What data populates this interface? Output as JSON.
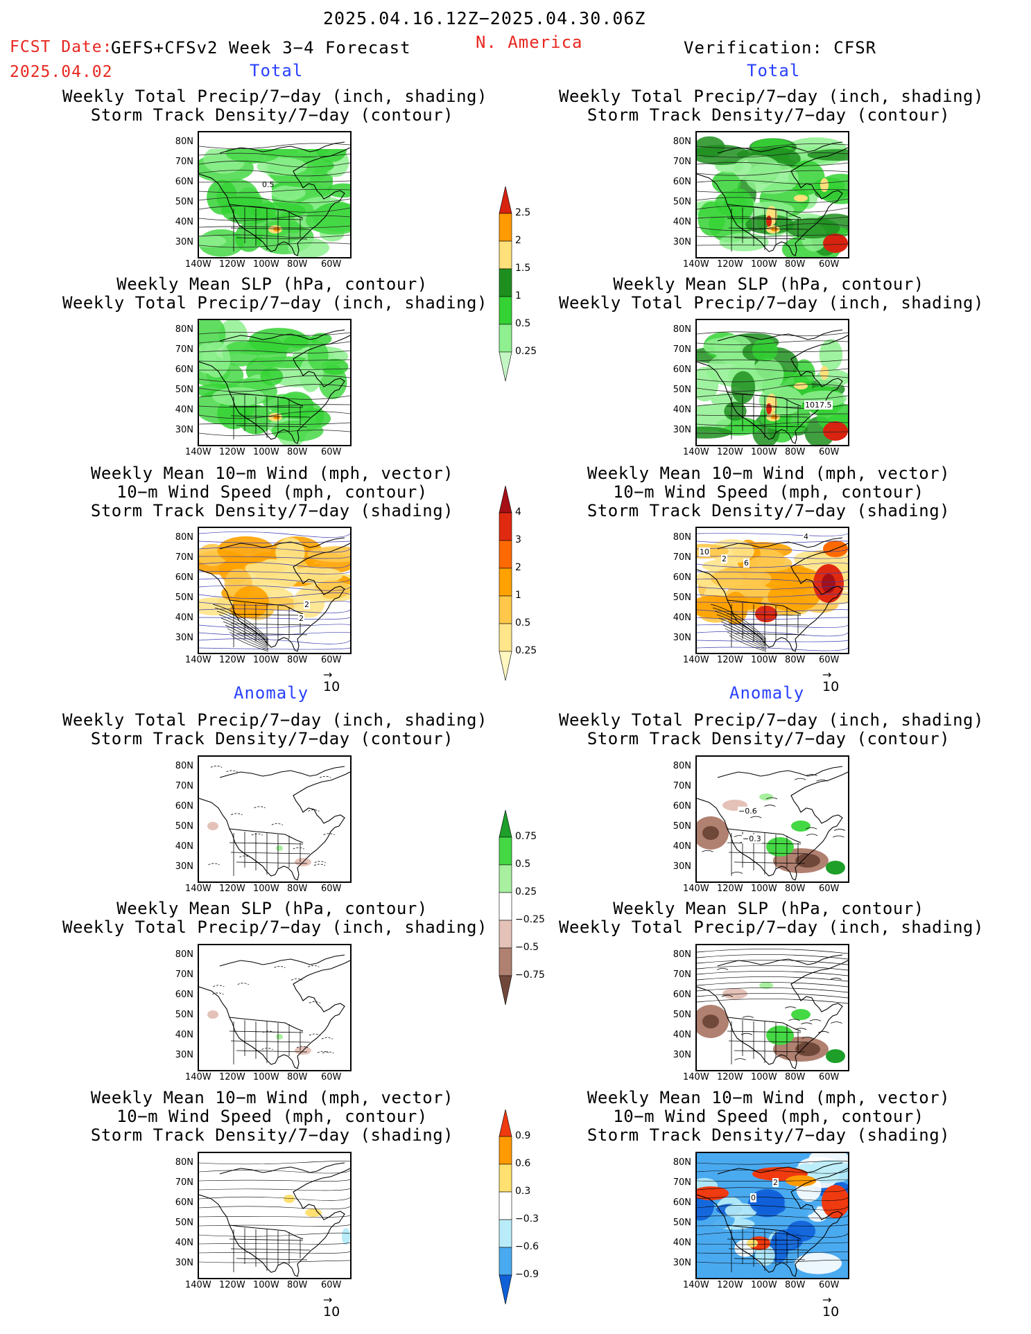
{
  "header": {
    "date_range": "2025.04.16.12Z−2025.04.30.06Z",
    "fcst_label": "FCST Date:",
    "model_title": "GEFS+CFSv2 Week 3−4 Forecast",
    "region": "N. America",
    "fcst_date": "2025.04.02",
    "verification": "Verification: CFSR"
  },
  "section_labels": {
    "total": "Total",
    "anomaly": "Anomaly"
  },
  "titles": {
    "precip_storm": [
      "Weekly Total Precip/7−day (inch, shading)",
      "Storm Track Density/7−day (contour)"
    ],
    "slp_precip": [
      "Weekly Mean SLP (hPa, contour)",
      "Weekly Total Precip/7−day (inch, shading)"
    ],
    "wind_storm": [
      "Weekly Mean 10−m Wind (mph, vector)",
      "10−m Wind Speed (mph, contour)",
      "Storm Track Density/7−day (shading)"
    ]
  },
  "axes": {
    "lat_labels": [
      "80N",
      "70N",
      "60N",
      "50N",
      "40N",
      "30N"
    ],
    "lon_labels": [
      "140W",
      "120W",
      "100W",
      "80W",
      "60W"
    ]
  },
  "vector_ref": "10",
  "colorbars": {
    "precip_total": {
      "labels": [
        "2.5",
        "2",
        "1.5",
        "1",
        "0.5",
        "0.25"
      ],
      "colors": [
        "#d7230f",
        "#ff9a00",
        "#ffe07a",
        "#1e8f1e",
        "#34d234",
        "#8ef08e",
        "#c4f6c4"
      ]
    },
    "storm_total": {
      "labels": [
        "4",
        "3",
        "2",
        "1",
        "0.5",
        "0.25"
      ],
      "colors": [
        "#a50f15",
        "#e02a10",
        "#ff6a00",
        "#ffa200",
        "#ffc84a",
        "#ffe68a",
        "#fff7c0"
      ]
    },
    "precip_anom": {
      "labels": [
        "0.75",
        "0.5",
        "0.25",
        "−0.25",
        "−0.5",
        "−0.75"
      ],
      "colors": [
        "#1e9f2a",
        "#45d845",
        "#a8f0a0",
        "#ffffff",
        "#e4c2b8",
        "#b08070",
        "#70483a"
      ]
    },
    "storm_anom": {
      "labels": [
        "0.9",
        "0.6",
        "0.3",
        "−0.3",
        "−0.6",
        "−0.9"
      ],
      "colors": [
        "#f03a10",
        "#ff9a00",
        "#ffe070",
        "#ffffff",
        "#b8ecf8",
        "#4aaaf0",
        "#1060d8"
      ]
    }
  },
  "map_annotations": {
    "fcst_precip_storm": "0.5",
    "verif_slp": "1017.5",
    "fcst_wind": [
      "2",
      "2"
    ],
    "verif_wind": [
      "4",
      "10",
      "2",
      "6"
    ],
    "verif_anom_precip": [
      "−0.6",
      "−0.3"
    ],
    "verif_anom_wind": [
      "0",
      "2"
    ]
  }
}
